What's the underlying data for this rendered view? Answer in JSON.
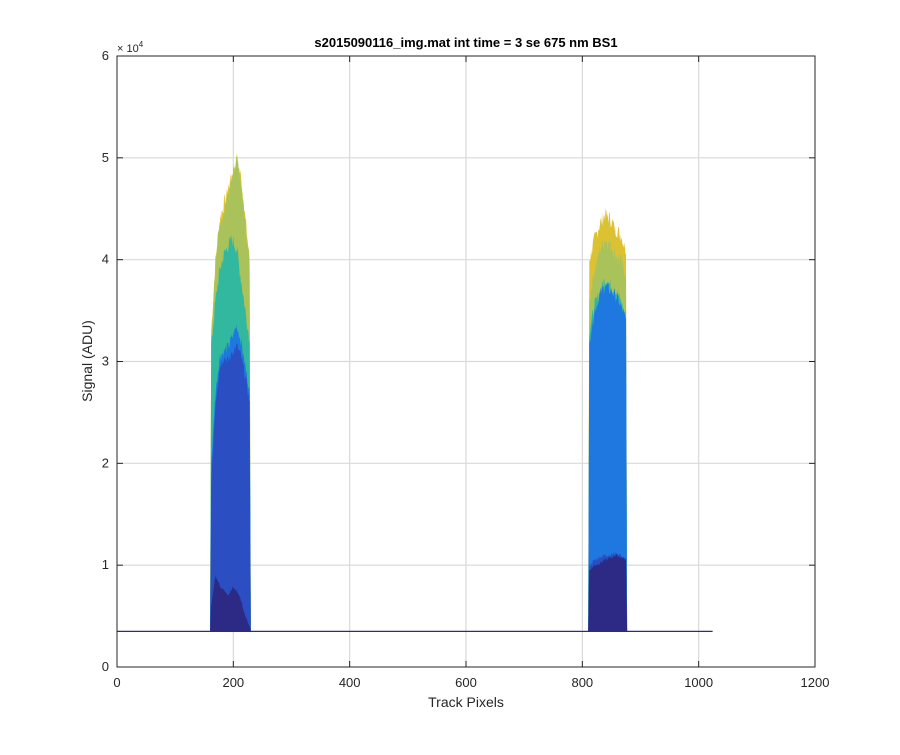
{
  "chart_data": {
    "type": "area",
    "title": "s2015090116_img.mat int time = 3 se  675 nm BS1",
    "xlabel": "Track Pixels",
    "ylabel": "Signal (ADU)",
    "xlim": [
      0,
      1200
    ],
    "ylim": [
      0,
      60000
    ],
    "x_ticks": [
      0,
      200,
      400,
      600,
      800,
      1000,
      1200
    ],
    "x_tick_labels": [
      "0",
      "200",
      "400",
      "600",
      "800",
      "1000",
      "1200"
    ],
    "y_ticks": [
      0,
      10000,
      20000,
      30000,
      40000,
      50000,
      60000
    ],
    "y_tick_labels": [
      "0",
      "1",
      "2",
      "3",
      "4",
      "5",
      "6"
    ],
    "y_exponent_label": "× 10",
    "y_exponent_power": "4",
    "grid": true,
    "baseline": 3500,
    "x_max_data": 1024,
    "series": [
      {
        "color": "#dcc233",
        "peaks": [
          {
            "start": 162,
            "end": 228,
            "values": [
              33000,
              40000,
              44000,
              45500,
              47000,
              48500,
              50000,
              48000,
              44000,
              40000
            ]
          },
          {
            "start": 812,
            "end": 875,
            "values": [
              40000,
              42000,
              43500,
              44500,
              44000,
              43000,
              42500,
              41000
            ]
          }
        ]
      },
      {
        "color": "#a9c25a",
        "peaks": [
          {
            "start": 162,
            "end": 228,
            "values": [
              32500,
              39500,
              43500,
              45000,
              46500,
              48000,
              49500,
              47500,
              43500,
              39500
            ]
          },
          {
            "start": 812,
            "end": 875,
            "values": [
              36000,
              39000,
              41000,
              42000,
              41500,
              40500,
              40000,
              38500
            ]
          }
        ]
      },
      {
        "color": "#33b8a0",
        "peaks": [
          {
            "start": 162,
            "end": 228,
            "values": [
              31500,
              36000,
              39000,
              40500,
              41500,
              42000,
              41000,
              38000,
              35000,
              32000
            ]
          },
          {
            "start": 812,
            "end": 875,
            "values": [
              33000,
              35500,
              37000,
              38000,
              37500,
              37000,
              36000,
              34500
            ]
          }
        ]
      },
      {
        "color": "#1e78e0",
        "peaks": [
          {
            "start": 162,
            "end": 228,
            "values": [
              20000,
              27000,
              30500,
              31000,
              31500,
              32500,
              33500,
              32000,
              29500,
              27000
            ]
          },
          {
            "start": 812,
            "end": 875,
            "values": [
              32000,
              35000,
              36500,
              37500,
              37000,
              36500,
              35500,
              34000
            ]
          }
        ]
      },
      {
        "color": "#2b4fc2",
        "peaks": [
          {
            "start": 162,
            "end": 228,
            "values": [
              18000,
              26000,
              29500,
              30500,
              30000,
              31000,
              31500,
              30500,
              28500,
              26000
            ]
          },
          {
            "start": 812,
            "end": 875,
            "values": [
              10000,
              10500,
              10800,
              11000,
              11000,
              11200,
              11000,
              10500
            ]
          }
        ]
      },
      {
        "color": "#2d2a85",
        "peaks": [
          {
            "start": 162,
            "end": 228,
            "values": [
              6000,
              9000,
              8000,
              7500,
              7000,
              7800,
              7500,
              6500,
              5000,
              4000
            ]
          },
          {
            "start": 812,
            "end": 875,
            "values": [
              9500,
              10000,
              10200,
              10500,
              10700,
              11000,
              10800,
              10500
            ]
          }
        ]
      }
    ]
  }
}
